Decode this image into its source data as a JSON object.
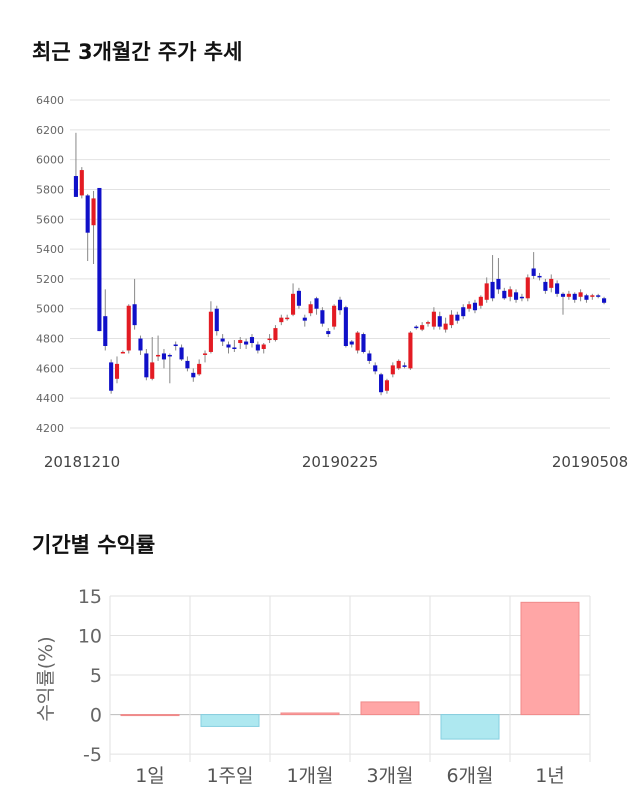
{
  "sections": {
    "price_title": "최근 3개월간 주가 추세",
    "returns_title": "기간별 수익률"
  },
  "colors": {
    "up": "#e31b23",
    "down": "#1010c8",
    "wick": "#888888",
    "bar_pos": "#ffa6a6",
    "bar_neg": "#aee8f0",
    "grid": "#e2e2e2"
  },
  "chart_data": [
    {
      "type": "candlestick",
      "title": "최근 3개월간 주가 추세",
      "ylim": [
        4200,
        6400
      ],
      "yticks": [
        4200,
        4400,
        4600,
        4800,
        5000,
        5200,
        5400,
        5600,
        5800,
        6000,
        6200,
        6400
      ],
      "xtick_labels": [
        "20181210",
        "20190225",
        "20190508"
      ],
      "grid": true,
      "candles": [
        [
          5890,
          5750,
          5750,
          6180
        ],
        [
          5760,
          5930,
          5740,
          5950
        ],
        [
          5760,
          5510,
          5320,
          5770
        ],
        [
          5560,
          5740,
          5300,
          5790
        ],
        [
          5810,
          4850,
          4850,
          5810
        ],
        [
          4950,
          4750,
          4720,
          5130
        ],
        [
          4640,
          4450,
          4430,
          4660
        ],
        [
          4530,
          4630,
          4500,
          4680
        ],
        [
          4700,
          4710,
          4700,
          4720
        ],
        [
          4720,
          5020,
          4700,
          5030
        ],
        [
          5030,
          4890,
          4860,
          5200
        ],
        [
          4800,
          4720,
          4690,
          4820
        ],
        [
          4700,
          4540,
          4520,
          4730
        ],
        [
          4530,
          4640,
          4520,
          4810
        ],
        [
          4680,
          4690,
          4650,
          4820
        ],
        [
          4700,
          4660,
          4600,
          4730
        ],
        [
          4690,
          4680,
          4500,
          4700
        ],
        [
          4760,
          4750,
          4720,
          4780
        ],
        [
          4740,
          4660,
          4650,
          4760
        ],
        [
          4650,
          4600,
          4580,
          4680
        ],
        [
          4570,
          4540,
          4510,
          4600
        ],
        [
          4560,
          4630,
          4550,
          4660
        ],
        [
          4700,
          4700,
          4640,
          4720
        ],
        [
          4710,
          4980,
          4700,
          5050
        ],
        [
          5000,
          4850,
          4820,
          5020
        ],
        [
          4800,
          4780,
          4750,
          4830
        ],
        [
          4760,
          4740,
          4700,
          4780
        ],
        [
          4740,
          4730,
          4710,
          4790
        ],
        [
          4770,
          4790,
          4730,
          4810
        ],
        [
          4780,
          4760,
          4730,
          4800
        ],
        [
          4810,
          4770,
          4740,
          4830
        ],
        [
          4760,
          4720,
          4700,
          4780
        ],
        [
          4730,
          4760,
          4700,
          4770
        ],
        [
          4790,
          4800,
          4770,
          4830
        ],
        [
          4790,
          4870,
          4780,
          4890
        ],
        [
          4910,
          4940,
          4890,
          4960
        ],
        [
          4930,
          4940,
          4920,
          4960
        ],
        [
          4960,
          5100,
          4950,
          5170
        ],
        [
          5120,
          5020,
          5000,
          5140
        ],
        [
          4940,
          4920,
          4880,
          4960
        ],
        [
          4970,
          5030,
          4950,
          5050
        ],
        [
          5070,
          5000,
          4960,
          5080
        ],
        [
          4990,
          4900,
          4880,
          5010
        ],
        [
          4850,
          4830,
          4810,
          4870
        ],
        [
          4880,
          5020,
          4860,
          5030
        ],
        [
          5060,
          4990,
          4960,
          5080
        ],
        [
          5010,
          4750,
          4740,
          5020
        ],
        [
          4780,
          4760,
          4740,
          4790
        ],
        [
          4720,
          4840,
          4700,
          4850
        ],
        [
          4830,
          4710,
          4700,
          4840
        ],
        [
          4700,
          4650,
          4630,
          4720
        ],
        [
          4620,
          4580,
          4560,
          4640
        ],
        [
          4560,
          4440,
          4420,
          4570
        ],
        [
          4450,
          4520,
          4430,
          4530
        ],
        [
          4560,
          4620,
          4540,
          4640
        ],
        [
          4600,
          4650,
          4590,
          4660
        ],
        [
          4620,
          4610,
          4600,
          4640
        ],
        [
          4600,
          4840,
          4590,
          4850
        ],
        [
          4880,
          4870,
          4860,
          4890
        ],
        [
          4860,
          4890,
          4850,
          4910
        ],
        [
          4900,
          4910,
          4880,
          4920
        ],
        [
          4880,
          4980,
          4860,
          5010
        ],
        [
          4950,
          4880,
          4860,
          4980
        ],
        [
          4860,
          4900,
          4840,
          4940
        ],
        [
          4890,
          4960,
          4870,
          4990
        ],
        [
          4960,
          4920,
          4900,
          4980
        ],
        [
          5010,
          4950,
          4930,
          5030
        ],
        [
          5000,
          5030,
          4980,
          5050
        ],
        [
          5040,
          4990,
          4970,
          5060
        ],
        [
          5020,
          5080,
          5000,
          5090
        ],
        [
          5060,
          5170,
          5040,
          5210
        ],
        [
          5180,
          5070,
          5050,
          5360
        ],
        [
          5200,
          5130,
          5100,
          5340
        ],
        [
          5120,
          5070,
          5060,
          5140
        ],
        [
          5080,
          5130,
          5050,
          5150
        ],
        [
          5110,
          5060,
          5040,
          5130
        ],
        [
          5080,
          5070,
          5050,
          5100
        ],
        [
          5070,
          5210,
          5050,
          5230
        ],
        [
          5270,
          5220,
          5200,
          5380
        ],
        [
          5220,
          5210,
          5190,
          5240
        ],
        [
          5180,
          5120,
          5100,
          5200
        ],
        [
          5140,
          5200,
          5110,
          5230
        ],
        [
          5170,
          5100,
          5080,
          5190
        ],
        [
          5100,
          5080,
          4960,
          5110
        ],
        [
          5080,
          5100,
          5060,
          5120
        ],
        [
          5100,
          5060,
          5040,
          5110
        ],
        [
          5080,
          5110,
          5050,
          5130
        ],
        [
          5090,
          5060,
          5040,
          5100
        ],
        [
          5080,
          5090,
          5060,
          5100
        ],
        [
          5090,
          5080,
          5070,
          5100
        ],
        [
          5070,
          5040,
          5030,
          5080
        ]
      ]
    },
    {
      "type": "bar",
      "title": "기간별 수익률",
      "ylabel": "수익률(%)",
      "categories": [
        "1일",
        "1주일",
        "1개월",
        "3개월",
        "6개월",
        "1년"
      ],
      "values": [
        0,
        -1.5,
        0.2,
        1.6,
        -3.1,
        14.2
      ],
      "ylim": [
        -6,
        15
      ],
      "yticks": [
        -5,
        0,
        5,
        10,
        15
      ],
      "grid": true
    }
  ]
}
